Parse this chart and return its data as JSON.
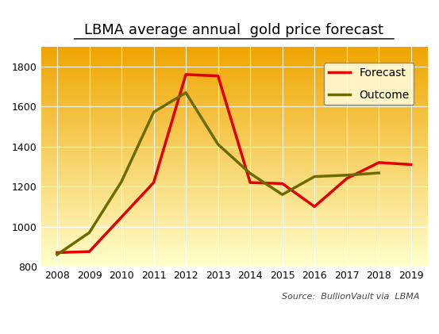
{
  "title": "LBMA average annual  gold price forecast",
  "years": [
    2008,
    2009,
    2010,
    2011,
    2012,
    2013,
    2014,
    2015,
    2016,
    2017,
    2018,
    2019
  ],
  "forecast": [
    870,
    875,
    null,
    1220,
    1760,
    1753,
    1220,
    1215,
    1100,
    1240,
    1320,
    1310
  ],
  "outcome": [
    860,
    970,
    1225,
    1572,
    1669,
    1411,
    1266,
    1160,
    1250,
    1257,
    1268,
    null
  ],
  "forecast_color": "#e00000",
  "outcome_color": "#6b6b00",
  "ylim": [
    800,
    1900
  ],
  "xlim": [
    2007.5,
    2019.5
  ],
  "yticks": [
    800,
    1000,
    1200,
    1400,
    1600,
    1800
  ],
  "xticks": [
    2008,
    2009,
    2010,
    2011,
    2012,
    2013,
    2014,
    2015,
    2016,
    2017,
    2018,
    2019
  ],
  "source_text": "Source:  BullionVault via  LBMA",
  "legend_forecast": "Forecast",
  "legend_outcome": "Outcome",
  "bg_top_color": "#f0a500",
  "bg_bottom_color": "#ffffcc",
  "linewidth": 2.5
}
